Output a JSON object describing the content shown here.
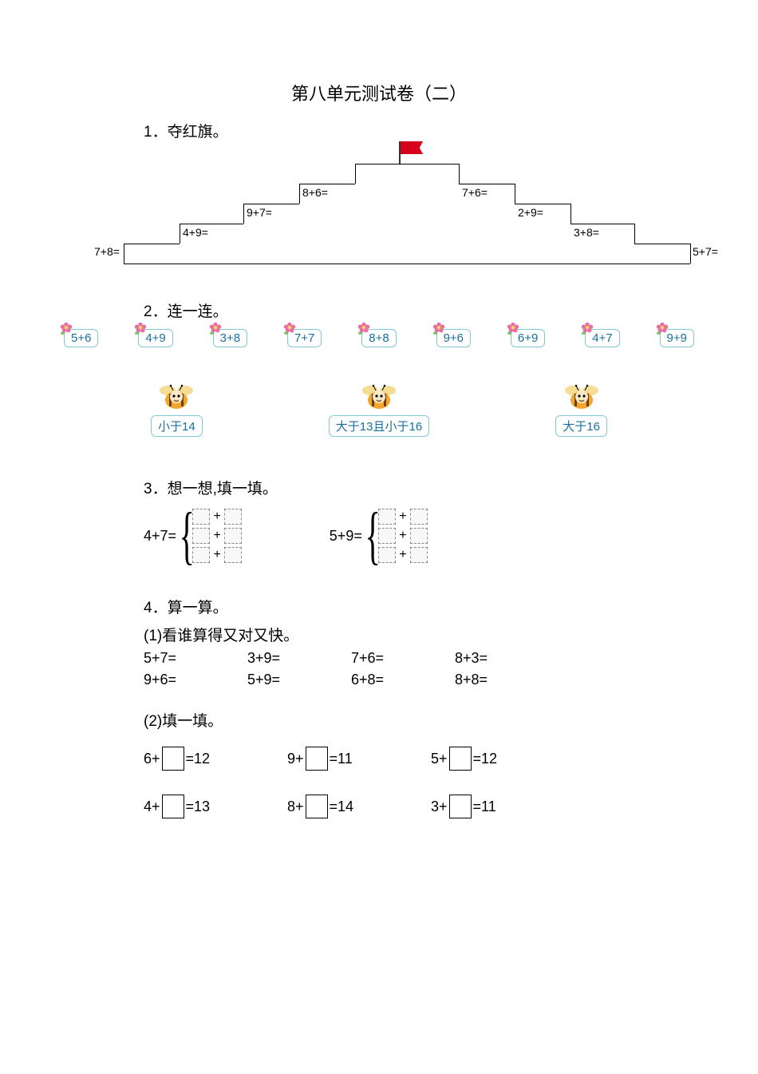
{
  "title": "第八单元测试卷（二）",
  "q1": {
    "heading": "1．夺红旗。",
    "left": [
      "7+8=",
      "4+9=",
      "9+7=",
      "8+6="
    ],
    "right": [
      "7+6=",
      "2+9=",
      "3+8=",
      "5+7="
    ],
    "colors": {
      "line": "#000000",
      "flag": "#d6001c",
      "pole": "#333333"
    }
  },
  "q2": {
    "heading": "2．连一连。",
    "tags": [
      "5+6",
      "4+9",
      "3+8",
      "7+7",
      "8+8",
      "9+6",
      "6+9",
      "4+7",
      "9+9"
    ],
    "groups": [
      "小于14",
      "大于13且小于16",
      "大于16"
    ],
    "colors": {
      "tag_border": "#7fc9d9",
      "tag_text": "#1a6fa0",
      "flower_petal": "#e86fa2",
      "flower_center": "#f7d94c",
      "flower_leaf": "#6fbf5a",
      "bee_body": "#f2a62e",
      "bee_stripe": "#6b3e14",
      "bee_wing": "#f5d98a",
      "bee_face": "#f9e9c9"
    }
  },
  "q3": {
    "heading": "3．想一想,填一填。",
    "items": [
      {
        "label": "4+7="
      },
      {
        "label": "5+9="
      }
    ],
    "box_glyph": "□"
  },
  "q4": {
    "heading": "4．算一算。",
    "part1_heading": "(1)看谁算得又对又快。",
    "part1": [
      "5+7=",
      "3+9=",
      "7+6=",
      "8+3=",
      "9+6=",
      "5+9=",
      "6+8=",
      "8+8="
    ],
    "part2_heading": "(2)填一填。",
    "part2": [
      {
        "a": "6+",
        "b": "=12"
      },
      {
        "a": "9+",
        "b": "=11"
      },
      {
        "a": "5+",
        "b": "=12"
      },
      {
        "a": "4+",
        "b": "=13"
      },
      {
        "a": "8+",
        "b": "=14"
      },
      {
        "a": "3+",
        "b": "=11"
      }
    ]
  }
}
